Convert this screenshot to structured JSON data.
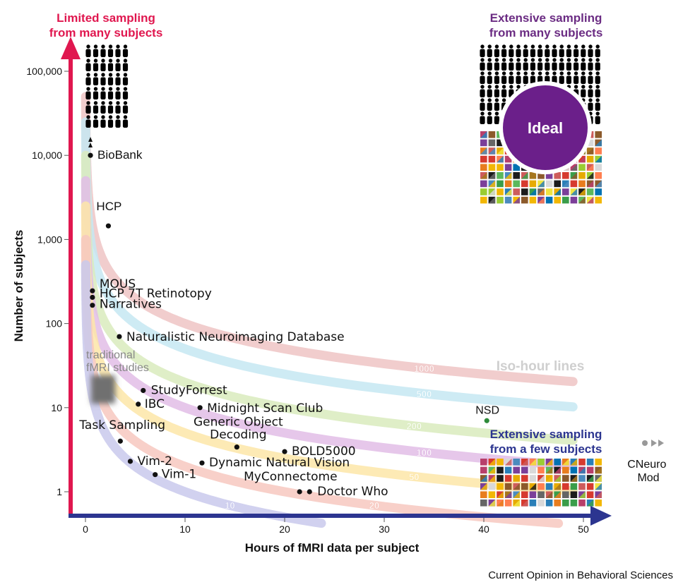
{
  "chart_data": {
    "type": "scatter",
    "title": "",
    "xlabel": "Hours of fMRI data per subject",
    "ylabel": "Number of subjects",
    "xscale": "linear",
    "yscale": "log",
    "xlim": [
      -1.5,
      50
    ],
    "ylim": [
      0.5,
      150000
    ],
    "x_ticks": [
      0,
      10,
      20,
      30,
      40,
      50
    ],
    "y_ticks": [
      1,
      10,
      100,
      1000,
      10000,
      100000
    ],
    "x_tick_labels": [
      "0",
      "10",
      "20",
      "30",
      "40",
      "50"
    ],
    "y_tick_labels": [
      "1",
      "10",
      "100",
      "1,000",
      "10,000",
      "100,000"
    ],
    "points": [
      {
        "label": "BioBank",
        "x": 0.5,
        "y": 10000
      },
      {
        "label": "HCP",
        "x": 2.3,
        "y": 1450
      },
      {
        "label": "MOUS",
        "x": 0.7,
        "y": 245
      },
      {
        "label": "HCP 7T Retinotopy",
        "x": 0.7,
        "y": 205
      },
      {
        "label": "Narratives",
        "x": 0.7,
        "y": 165
      },
      {
        "label": "Naturalistic Neuroimaging Database",
        "x": 3.4,
        "y": 70
      },
      {
        "label": "StudyForrest",
        "x": 5.8,
        "y": 16
      },
      {
        "label": "IBC",
        "x": 5.3,
        "y": 11
      },
      {
        "label": "Midnight Scan Club",
        "x": 11.5,
        "y": 10
      },
      {
        "label": "Task Sampling",
        "x": 3.5,
        "y": 4
      },
      {
        "label": "Generic Object Decoding",
        "x": 15.2,
        "y": 3.4
      },
      {
        "label": "BOLD5000",
        "x": 20,
        "y": 3
      },
      {
        "label": "Vim-2",
        "x": 4.5,
        "y": 2.3
      },
      {
        "label": "Dynamic Natural Vision",
        "x": 11.7,
        "y": 2.2
      },
      {
        "label": "Vim-1",
        "x": 7,
        "y": 1.6
      },
      {
        "label": "MyConnectome",
        "x": 21.5,
        "y": 1
      },
      {
        "label": "Doctor Who",
        "x": 22.5,
        "y": 1
      },
      {
        "label": "NSD",
        "x": 40.3,
        "y": 7,
        "color": "#2e8b3a"
      }
    ],
    "iso_hour_lines": [
      {
        "total_hours": 10,
        "label": "10",
        "color": "#c9c9ec"
      },
      {
        "total_hours": 20,
        "label": "20",
        "color": "#f7c8c0"
      },
      {
        "total_hours": 50,
        "label": "50",
        "color": "#fde6a8"
      },
      {
        "total_hours": 100,
        "label": "100",
        "color": "#e2bde6"
      },
      {
        "total_hours": 200,
        "label": "200",
        "color": "#d9ebbd"
      },
      {
        "total_hours": 500,
        "label": "500",
        "color": "#c6e8f2"
      },
      {
        "total_hours": 1000,
        "label": "1000",
        "color": "#eec4c4"
      }
    ],
    "annotations": {
      "iso_label": "Iso-hour lines",
      "traditional": "traditional\nfMRI studies",
      "ideal": "Ideal",
      "cneuromod": "CNeuro\nMod",
      "top_left": "Limited sampling\nfrom many subjects",
      "top_right": "Extensive sampling\nfrom many subjects",
      "bottom_right": "Extensive sampling\nfrom a few subjects"
    },
    "colors": {
      "y_axis": "#e0174f",
      "x_axis": "#2c3590",
      "top_left_text": "#e0174f",
      "top_right_text": "#6b2c83",
      "ideal": "#6b1f8a",
      "bottom_right_text": "#2c3590",
      "point": "#111111"
    }
  },
  "source": "Current Opinion in Behavioral Sciences"
}
